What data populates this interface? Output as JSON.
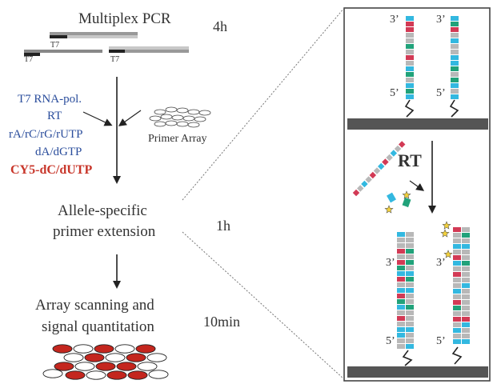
{
  "left": {
    "title": "Multiplex PCR",
    "t7_labels": [
      "T7",
      "T7",
      "T7"
    ],
    "reagents": [
      "T7 RNA-pol.",
      "RT",
      "rA/rC/rG/rUTP",
      "dA/dGTP"
    ],
    "dye": "CY5-dC/dUTP",
    "primer_array": "Primer Array",
    "step2": [
      "Allele-specific",
      "primer extension"
    ],
    "step3": [
      "Array scanning and",
      "signal quantitation"
    ]
  },
  "times": [
    "4h",
    "1h",
    "10min"
  ],
  "right": {
    "top_3prime": [
      "3’",
      "3’"
    ],
    "top_5prime": [
      "5’",
      "5’"
    ],
    "rt_label": "RT",
    "bottom_3prime": [
      "3’",
      "3’"
    ],
    "bottom_5prime": [
      "5’",
      "5’"
    ]
  },
  "colors": {
    "red": "#d23a55",
    "cyan": "#33b8e0",
    "green": "#21a27a",
    "gray": "#b8b8b8",
    "dark_surface": "#555555",
    "blue_text": "#2a4d9c",
    "dye_text": "#c8362a",
    "star": "#f3d13a",
    "dot_red": "#c4261e"
  }
}
